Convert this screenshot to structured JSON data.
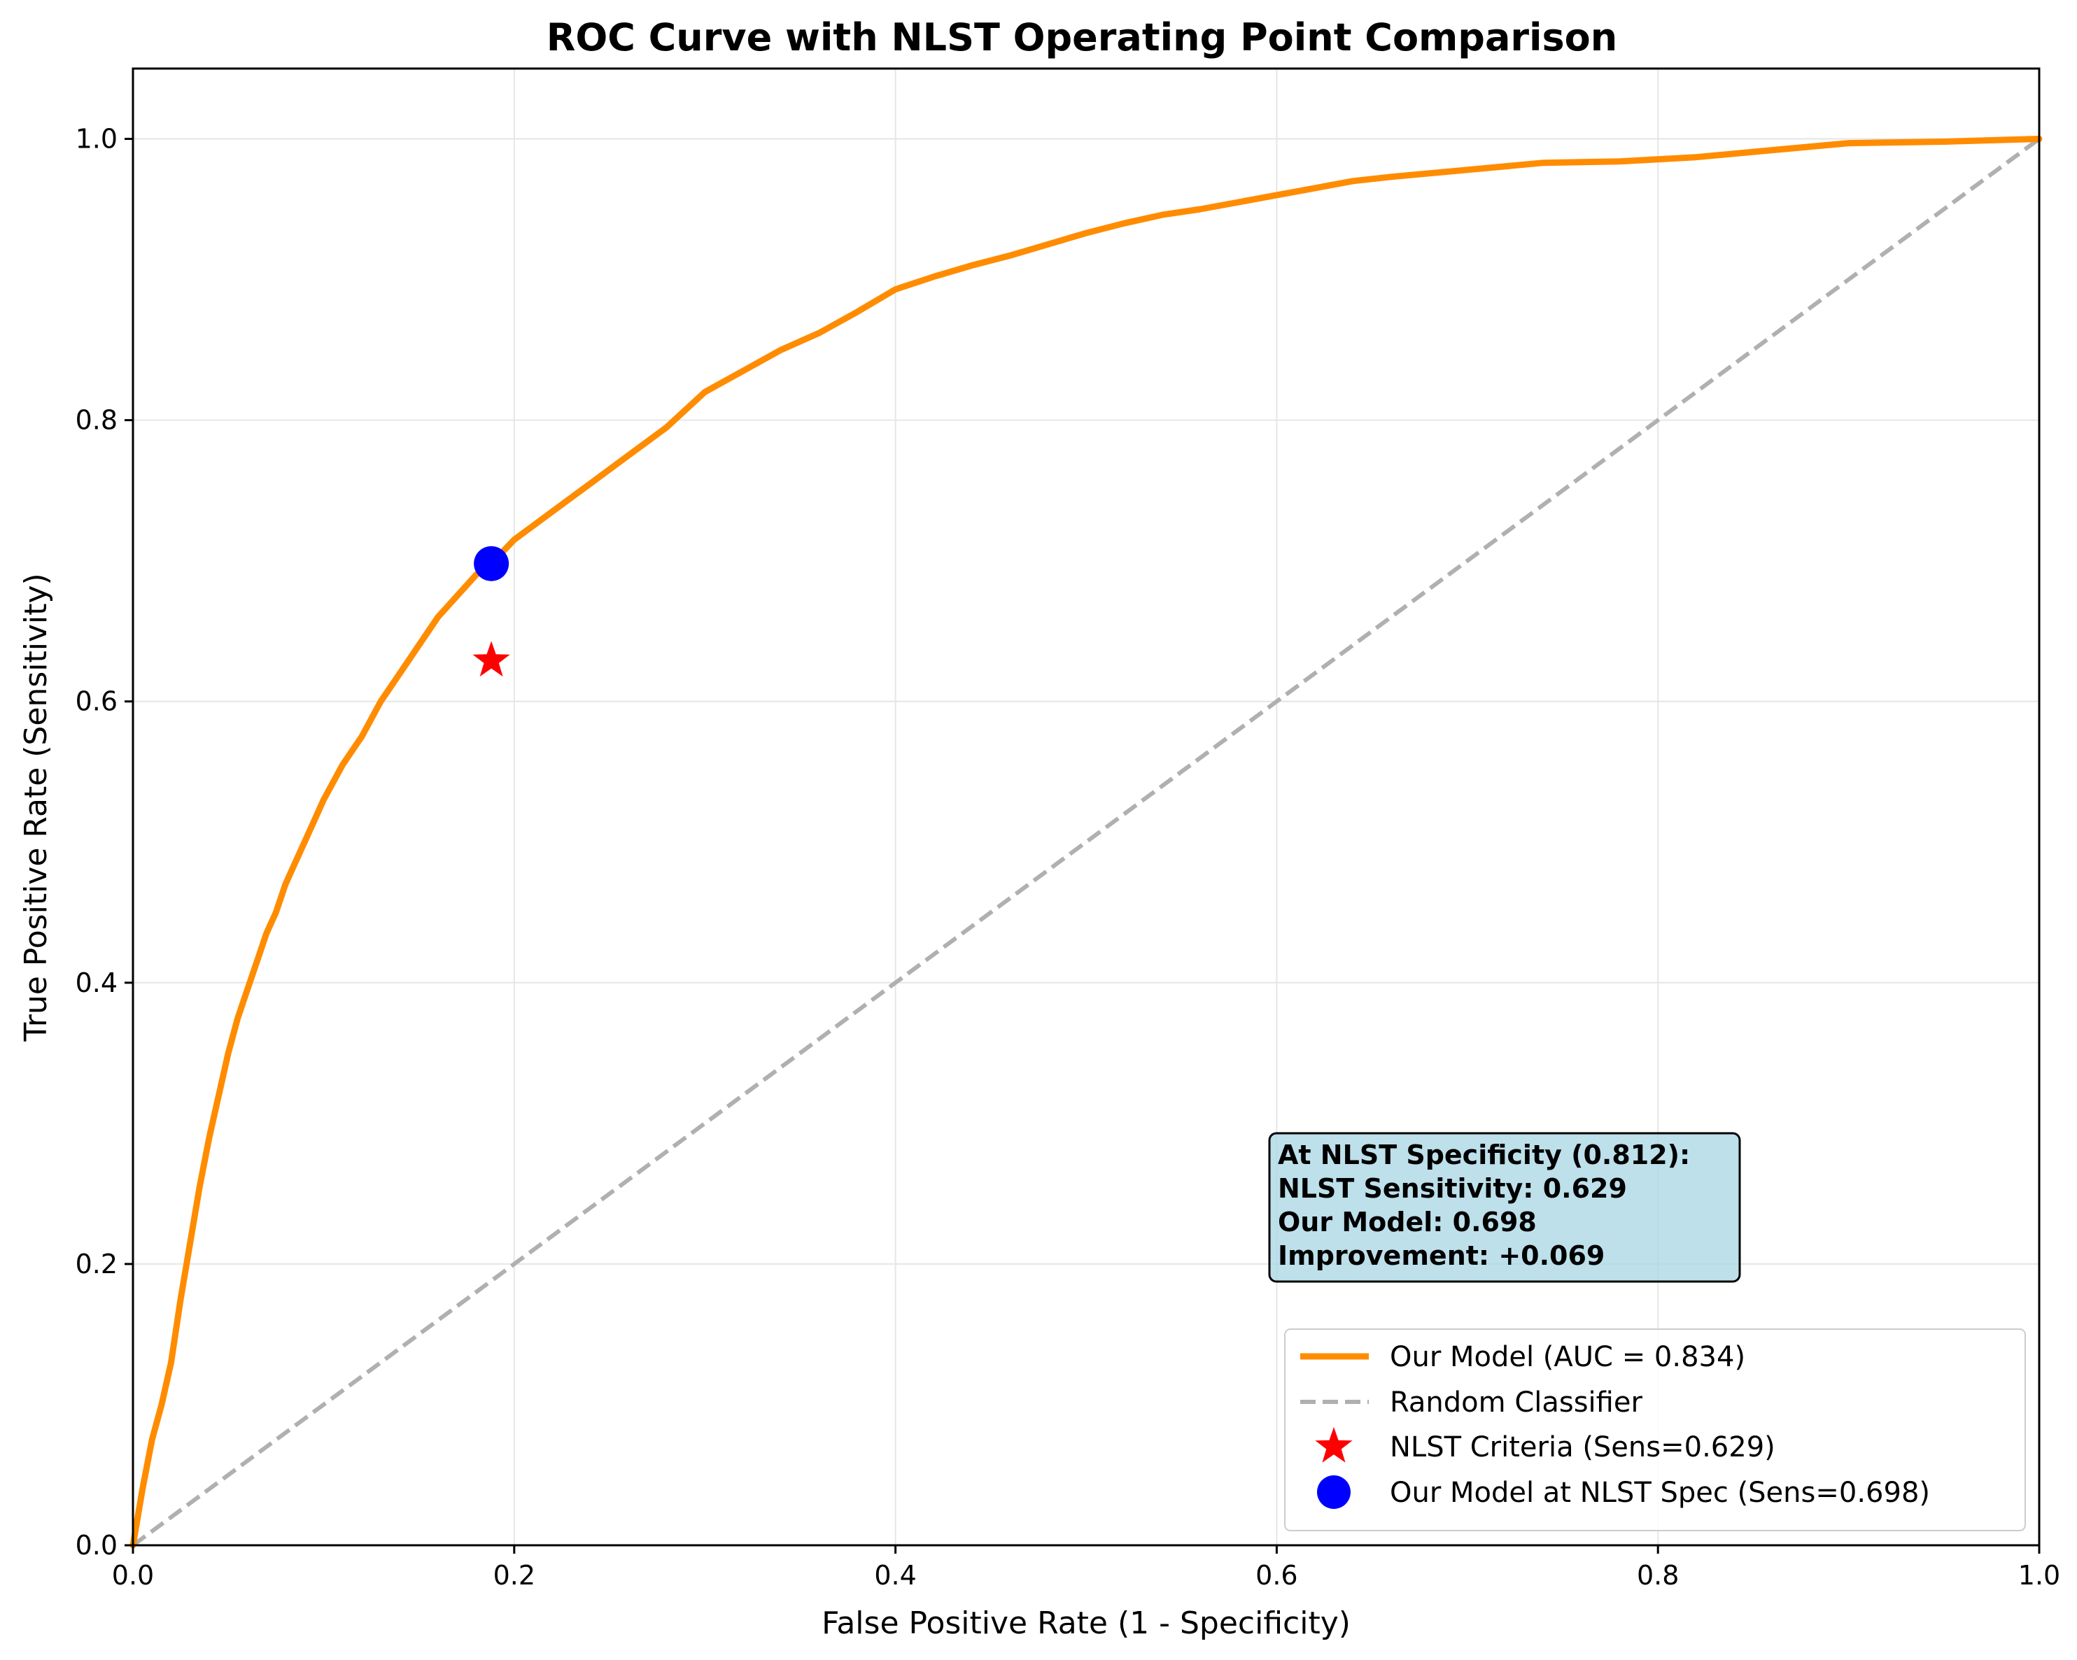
{
  "chart_data": {
    "type": "line",
    "title": "ROC Curve with NLST Operating Point Comparison",
    "xlabel": "False Positive Rate (1 - Specificity)",
    "ylabel": "True Positive Rate (Sensitivity)",
    "xlim": [
      0.0,
      1.0
    ],
    "ylim": [
      0.0,
      1.05
    ],
    "xticks": [
      0.0,
      0.2,
      0.4,
      0.6,
      0.8,
      1.0
    ],
    "xtick_labels": [
      "0.0",
      "0.2",
      "0.4",
      "0.6",
      "0.8",
      "1.0"
    ],
    "yticks": [
      0.0,
      0.2,
      0.4,
      0.6,
      0.8,
      1.0
    ],
    "ytick_labels": [
      "0.0",
      "0.2",
      "0.4",
      "0.6",
      "0.8",
      "1.0"
    ],
    "grid": true,
    "legend_position": "lower-right",
    "series": [
      {
        "name": "Our Model (AUC = 0.834)",
        "kind": "line",
        "color": "#ff8c00",
        "x": [
          0.0,
          0.005,
          0.01,
          0.015,
          0.02,
          0.025,
          0.03,
          0.035,
          0.04,
          0.045,
          0.05,
          0.055,
          0.06,
          0.065,
          0.07,
          0.075,
          0.08,
          0.085,
          0.09,
          0.095,
          0.1,
          0.11,
          0.12,
          0.13,
          0.14,
          0.15,
          0.16,
          0.17,
          0.18,
          0.188,
          0.2,
          0.22,
          0.24,
          0.26,
          0.28,
          0.3,
          0.32,
          0.34,
          0.36,
          0.38,
          0.4,
          0.42,
          0.44,
          0.46,
          0.48,
          0.5,
          0.52,
          0.54,
          0.56,
          0.58,
          0.6,
          0.62,
          0.64,
          0.66,
          0.7,
          0.74,
          0.78,
          0.82,
          0.86,
          0.9,
          0.95,
          1.0
        ],
        "y": [
          0.0,
          0.04,
          0.075,
          0.1,
          0.13,
          0.175,
          0.215,
          0.255,
          0.29,
          0.32,
          0.35,
          0.375,
          0.395,
          0.415,
          0.435,
          0.45,
          0.47,
          0.485,
          0.5,
          0.515,
          0.53,
          0.555,
          0.575,
          0.6,
          0.62,
          0.64,
          0.66,
          0.675,
          0.69,
          0.698,
          0.715,
          0.735,
          0.755,
          0.775,
          0.795,
          0.82,
          0.835,
          0.85,
          0.862,
          0.877,
          0.893,
          0.902,
          0.91,
          0.917,
          0.925,
          0.933,
          0.94,
          0.946,
          0.95,
          0.955,
          0.96,
          0.965,
          0.97,
          0.973,
          0.978,
          0.983,
          0.984,
          0.987,
          0.992,
          0.997,
          0.998,
          1.0
        ]
      },
      {
        "name": "Random Classifier",
        "kind": "dashed-line",
        "color": "#b0b0b0",
        "x": [
          0.0,
          1.0
        ],
        "y": [
          0.0,
          1.0
        ]
      },
      {
        "name": "NLST Criteria (Sens=0.629)",
        "kind": "star-marker",
        "color": "#ff0000",
        "x": [
          0.188
        ],
        "y": [
          0.629
        ]
      },
      {
        "name": "Our Model at NLST Spec (Sens=0.698)",
        "kind": "circle-marker",
        "color": "#0000ff",
        "x": [
          0.188
        ],
        "y": [
          0.698
        ]
      }
    ],
    "annotation": {
      "lines": [
        "At NLST Specificity (0.812):",
        "NLST Sensitivity: 0.629",
        "Our Model: 0.698",
        "Improvement: +0.069"
      ],
      "background": "#add8e6"
    }
  }
}
